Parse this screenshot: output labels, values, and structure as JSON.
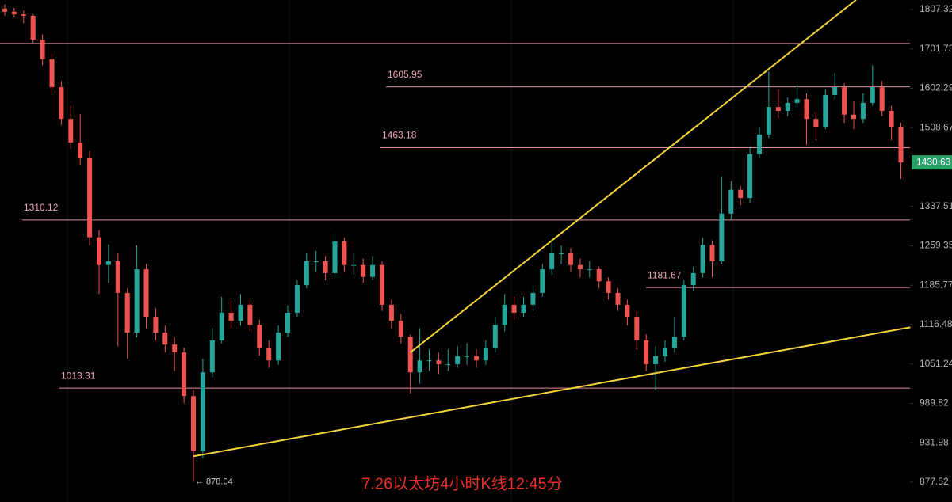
{
  "chart_data": {
    "type": "candlestick",
    "title": "7.26以太坊4小时K线12:45分",
    "log_scale": true,
    "ylim": [
      851.4,
      1833.7
    ],
    "yticks": [
      1807.32,
      1701.73,
      1602.29,
      1508.67,
      1337.51,
      1259.35,
      1185.77,
      1116.48,
      1051.24,
      989.82,
      931.98,
      877.52
    ],
    "up_color": "#26a69a",
    "down_color": "#ef5350",
    "level_color": "#e58a9c",
    "trend_color": "#f2d43a",
    "lines": [
      1716
    ],
    "levels": [
      1605.95,
      1463.18,
      1310.12,
      1181.67,
      1013.31
    ],
    "low_label": {
      "value": 878.04,
      "label": "← 878.04"
    },
    "last_price": 1430.63,
    "trendlines": [
      {
        "from": [
          20,
          913
        ],
        "to": [
          96,
          1112
        ]
      },
      {
        "from": [
          43,
          1070
        ],
        "to": [
          90.25,
          1834
        ]
      }
    ],
    "ohlc": [
      [
        1810,
        1822,
        1790,
        1801
      ],
      [
        1801,
        1812,
        1785,
        1794
      ],
      [
        1794,
        1805,
        1770,
        1790
      ],
      [
        1790,
        1795,
        1715,
        1726
      ],
      [
        1726,
        1740,
        1660,
        1675
      ],
      [
        1675,
        1690,
        1590,
        1605
      ],
      [
        1605,
        1620,
        1515,
        1529
      ],
      [
        1529,
        1560,
        1460,
        1475
      ],
      [
        1475,
        1540,
        1425,
        1440
      ],
      [
        1440,
        1455,
        1260,
        1276
      ],
      [
        1276,
        1290,
        1170,
        1223
      ],
      [
        1223,
        1262,
        1190,
        1230
      ],
      [
        1230,
        1245,
        1080,
        1172
      ],
      [
        1172,
        1180,
        1060,
        1103
      ],
      [
        1103,
        1260,
        1095,
        1215
      ],
      [
        1215,
        1225,
        1110,
        1130
      ],
      [
        1130,
        1145,
        1090,
        1103
      ],
      [
        1103,
        1115,
        1070,
        1083
      ],
      [
        1083,
        1095,
        1040,
        1070
      ],
      [
        1070,
        1078,
        990,
        1001
      ],
      [
        1001,
        1010,
        878.04,
        920
      ],
      [
        920,
        1060,
        910,
        1038
      ],
      [
        1038,
        1110,
        1030,
        1090
      ],
      [
        1090,
        1165,
        1085,
        1137
      ],
      [
        1137,
        1160,
        1110,
        1123
      ],
      [
        1123,
        1170,
        1115,
        1151
      ],
      [
        1151,
        1160,
        1105,
        1116
      ],
      [
        1116,
        1125,
        1065,
        1077
      ],
      [
        1077,
        1090,
        1045,
        1057
      ],
      [
        1057,
        1115,
        1050,
        1103
      ],
      [
        1103,
        1150,
        1095,
        1137
      ],
      [
        1137,
        1195,
        1130,
        1186
      ],
      [
        1186,
        1245,
        1180,
        1230
      ],
      [
        1230,
        1250,
        1210,
        1230
      ],
      [
        1230,
        1240,
        1195,
        1208
      ],
      [
        1208,
        1282,
        1200,
        1268
      ],
      [
        1268,
        1275,
        1210,
        1223
      ],
      [
        1223,
        1245,
        1205,
        1223
      ],
      [
        1223,
        1235,
        1190,
        1201
      ],
      [
        1201,
        1240,
        1195,
        1223
      ],
      [
        1223,
        1230,
        1140,
        1151
      ],
      [
        1151,
        1160,
        1110,
        1123
      ],
      [
        1123,
        1135,
        1085,
        1096
      ],
      [
        1096,
        1100,
        1005,
        1038
      ],
      [
        1038,
        1110,
        1020,
        1057
      ],
      [
        1057,
        1075,
        1040,
        1057
      ],
      [
        1057,
        1070,
        1035,
        1051
      ],
      [
        1051,
        1075,
        1040,
        1051
      ],
      [
        1051,
        1080,
        1045,
        1064
      ],
      [
        1064,
        1085,
        1050,
        1064
      ],
      [
        1064,
        1075,
        1045,
        1057
      ],
      [
        1057,
        1090,
        1050,
        1077
      ],
      [
        1077,
        1130,
        1070,
        1116
      ],
      [
        1116,
        1170,
        1105,
        1151
      ],
      [
        1151,
        1165,
        1125,
        1137
      ],
      [
        1137,
        1165,
        1130,
        1151
      ],
      [
        1151,
        1185,
        1140,
        1172
      ],
      [
        1172,
        1225,
        1165,
        1215
      ],
      [
        1215,
        1270,
        1205,
        1245
      ],
      [
        1245,
        1260,
        1225,
        1245
      ],
      [
        1245,
        1255,
        1210,
        1223
      ],
      [
        1223,
        1235,
        1200,
        1215
      ],
      [
        1215,
        1230,
        1200,
        1215
      ],
      [
        1215,
        1220,
        1180,
        1193
      ],
      [
        1193,
        1200,
        1160,
        1172
      ],
      [
        1172,
        1180,
        1140,
        1151
      ],
      [
        1151,
        1160,
        1115,
        1130
      ],
      [
        1130,
        1140,
        1075,
        1090
      ],
      [
        1090,
        1100,
        1040,
        1051
      ],
      [
        1051,
        1080,
        1010,
        1064
      ],
      [
        1064,
        1090,
        1055,
        1077
      ],
      [
        1077,
        1130,
        1070,
        1096
      ],
      [
        1096,
        1195,
        1090,
        1186
      ],
      [
        1186,
        1220,
        1175,
        1208
      ],
      [
        1208,
        1275,
        1200,
        1261
      ],
      [
        1261,
        1270,
        1200,
        1230
      ],
      [
        1230,
        1400,
        1225,
        1323
      ],
      [
        1323,
        1390,
        1310,
        1372
      ],
      [
        1372,
        1380,
        1340,
        1355
      ],
      [
        1355,
        1465,
        1345,
        1449
      ],
      [
        1449,
        1510,
        1440,
        1493
      ],
      [
        1493,
        1645,
        1485,
        1557
      ],
      [
        1557,
        1600,
        1530,
        1548
      ],
      [
        1548,
        1580,
        1535,
        1567
      ],
      [
        1567,
        1610,
        1555,
        1576
      ],
      [
        1576,
        1590,
        1470,
        1529
      ],
      [
        1529,
        1545,
        1480,
        1511
      ],
      [
        1511,
        1600,
        1505,
        1586
      ],
      [
        1586,
        1640,
        1575,
        1605
      ],
      [
        1605,
        1615,
        1520,
        1539
      ],
      [
        1539,
        1570,
        1505,
        1529
      ],
      [
        1529,
        1590,
        1520,
        1567
      ],
      [
        1567,
        1660,
        1560,
        1605
      ],
      [
        1605,
        1620,
        1535,
        1548
      ],
      [
        1548,
        1560,
        1480,
        1511
      ],
      [
        1511,
        1520,
        1395,
        1430.63
      ]
    ]
  }
}
